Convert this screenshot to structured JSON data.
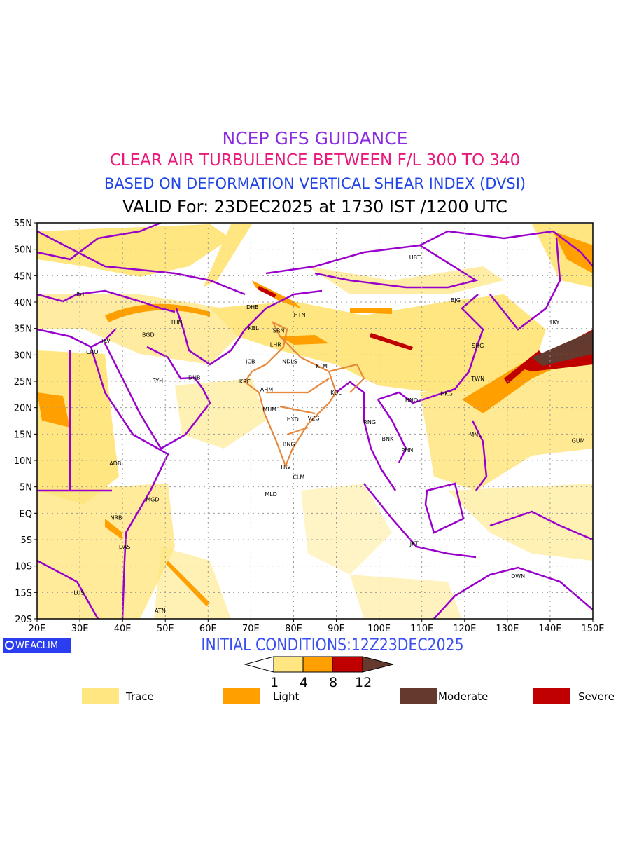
{
  "titles": {
    "line1": "NCEP GFS GUIDANCE",
    "line2": "CLEAR AIR TURBULENCE BETWEEN F/L 300 TO 340",
    "line3": "BASED ON DEFORMATION VERTICAL SHEAR INDEX (DVSI)",
    "line4": "VALID For: 23DEC2025 at 1730 IST /1200 UTC"
  },
  "map": {
    "lon_range": [
      20,
      150
    ],
    "lat_range": [
      -20,
      55
    ],
    "lon_labels": [
      "20E",
      "30E",
      "40E",
      "50E",
      "60E",
      "70E",
      "80E",
      "90E",
      "100E",
      "110E",
      "120E",
      "130E",
      "140E",
      "150E"
    ],
    "lat_labels": [
      "55N",
      "50N",
      "45N",
      "40N",
      "35N",
      "30N",
      "25N",
      "20N",
      "15N",
      "10N",
      "5N",
      "EQ",
      "5S",
      "10S",
      "15S",
      "20S"
    ],
    "cities": [
      {
        "code": "UBT",
        "lon": 108.4,
        "lat": 48.5
      },
      {
        "code": "BJG",
        "lon": 117.9,
        "lat": 40.4
      },
      {
        "code": "TKY",
        "lon": 141,
        "lat": 36.2
      },
      {
        "code": "SHG",
        "lon": 123.1,
        "lat": 31.8
      },
      {
        "code": "TWN",
        "lon": 123.1,
        "lat": 25.5
      },
      {
        "code": "HKG",
        "lon": 115.8,
        "lat": 22.7
      },
      {
        "code": "HNO",
        "lon": 107.6,
        "lat": 21.4
      },
      {
        "code": "RNG",
        "lon": 97.8,
        "lat": 17.3
      },
      {
        "code": "BNK",
        "lon": 102,
        "lat": 14.1
      },
      {
        "code": "PHN",
        "lon": 106.6,
        "lat": 12
      },
      {
        "code": "MNL",
        "lon": 122.5,
        "lat": 14.9
      },
      {
        "code": "GUM",
        "lon": 146.6,
        "lat": 13.8
      },
      {
        "code": "IST",
        "lon": 30.2,
        "lat": 41.6
      },
      {
        "code": "TLV",
        "lon": 36,
        "lat": 32.7
      },
      {
        "code": "CRO",
        "lon": 32.9,
        "lat": 30.6
      },
      {
        "code": "BGD",
        "lon": 46,
        "lat": 33.8
      },
      {
        "code": "THN",
        "lon": 52.6,
        "lat": 36.2
      },
      {
        "code": "RYH",
        "lon": 48.2,
        "lat": 25.1
      },
      {
        "code": "DUB",
        "lon": 56.8,
        "lat": 25.7
      },
      {
        "code": "DHB",
        "lon": 70.4,
        "lat": 39.1
      },
      {
        "code": "KBL",
        "lon": 70.6,
        "lat": 35.1
      },
      {
        "code": "SRN",
        "lon": 76.5,
        "lat": 34.6
      },
      {
        "code": "LHR",
        "lon": 75.8,
        "lat": 32
      },
      {
        "code": "HTN",
        "lon": 81.4,
        "lat": 37.6
      },
      {
        "code": "JCB",
        "lon": 69.9,
        "lat": 28.8
      },
      {
        "code": "NDLS",
        "lon": 79.1,
        "lat": 28.8
      },
      {
        "code": "KTM",
        "lon": 86.6,
        "lat": 27.9
      },
      {
        "code": "KRC",
        "lon": 68.6,
        "lat": 25
      },
      {
        "code": "AHM",
        "lon": 73.7,
        "lat": 23.5
      },
      {
        "code": "KOL",
        "lon": 89.9,
        "lat": 22.9
      },
      {
        "code": "MUM",
        "lon": 74.4,
        "lat": 19.7
      },
      {
        "code": "HYD",
        "lon": 79.8,
        "lat": 17.8
      },
      {
        "code": "VZG",
        "lon": 84.7,
        "lat": 18
      },
      {
        "code": "BNG",
        "lon": 78.9,
        "lat": 13.1
      },
      {
        "code": "TRV",
        "lon": 78.1,
        "lat": 8.8
      },
      {
        "code": "CLM",
        "lon": 81.2,
        "lat": 6.9
      },
      {
        "code": "MLD",
        "lon": 74.7,
        "lat": 3.6
      },
      {
        "code": "ADB",
        "lon": 38.3,
        "lat": 9.5
      },
      {
        "code": "MGD",
        "lon": 47,
        "lat": 2.6
      },
      {
        "code": "NRB",
        "lon": 38.5,
        "lat": -0.8
      },
      {
        "code": "DAS",
        "lon": 40.5,
        "lat": -6.3
      },
      {
        "code": "LUS",
        "lon": 29.8,
        "lat": -15
      },
      {
        "code": "ATN",
        "lon": 48.8,
        "lat": -18.4
      },
      {
        "code": "JKT",
        "lon": 108.2,
        "lat": -5.7
      },
      {
        "code": "DWN",
        "lon": 132.5,
        "lat": -11.9
      }
    ]
  },
  "branding": {
    "label": "WEACLIM"
  },
  "initial_conditions": "INITIAL CONDITIONS:12Z23DEC2025",
  "colorbar": {
    "ticks": [
      "1",
      "4",
      "8",
      "12"
    ],
    "colors": {
      "below": "#ffffff",
      "trace": "#ffe680",
      "light": "#ffa000",
      "severe": "#c00000",
      "moderate": "#643a2e"
    }
  },
  "legend": [
    {
      "label": "Trace",
      "color": "#ffe680"
    },
    {
      "label": "Light",
      "color": "#ffa000"
    },
    {
      "label": "Moderate",
      "color": "#643a2e"
    },
    {
      "label": "Severe",
      "color": "#c00000"
    }
  ],
  "colors": {
    "coast": "#9900cc",
    "india_border": "#e8883a"
  }
}
